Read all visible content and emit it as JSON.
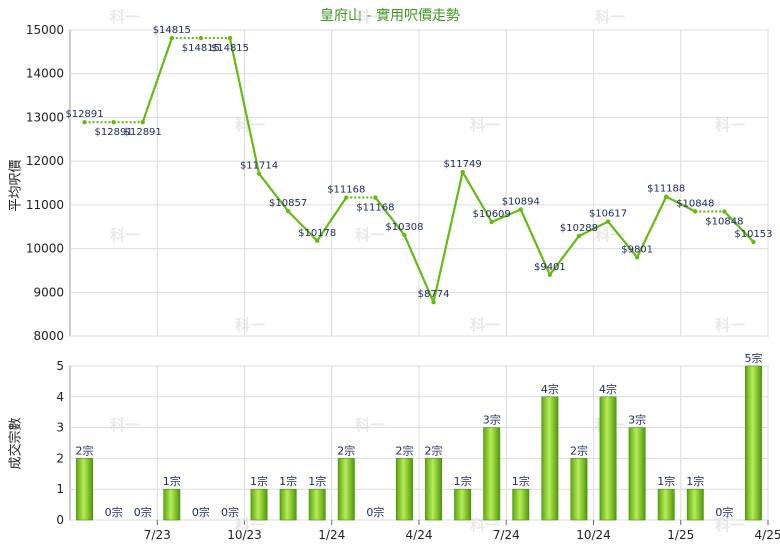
{
  "chart_data": [
    {
      "type": "line",
      "title": "皇府山 - 實用呎價走勢",
      "ylabel": "平均呎價",
      "ylim": [
        8000,
        15000
      ],
      "yticks": [
        8000,
        9000,
        10000,
        11000,
        12000,
        13000,
        14000,
        15000
      ],
      "points": [
        {
          "i": 0,
          "value": 12891,
          "label": "$12891"
        },
        {
          "i": 1,
          "value": 12891,
          "label": "$12891"
        },
        {
          "i": 2,
          "value": 12891,
          "label": "$12891"
        },
        {
          "i": 3,
          "value": 14815,
          "label": "$14815"
        },
        {
          "i": 4,
          "value": 14815,
          "label": "$14815"
        },
        {
          "i": 5,
          "value": 14815,
          "label": "$14815"
        },
        {
          "i": 6,
          "value": 11714,
          "label": "$11714"
        },
        {
          "i": 7,
          "value": 10857,
          "label": "$10857"
        },
        {
          "i": 8,
          "value": 10178,
          "label": "$10178"
        },
        {
          "i": 9,
          "value": 11168,
          "label": "$11168"
        },
        {
          "i": 10,
          "value": 11168,
          "label": "$11168"
        },
        {
          "i": 11,
          "value": 10308,
          "label": "$10308"
        },
        {
          "i": 12,
          "value": 8774,
          "label": "$8774"
        },
        {
          "i": 13,
          "value": 11749,
          "label": "$11749"
        },
        {
          "i": 14,
          "value": 10609,
          "label": "$10609"
        },
        {
          "i": 15,
          "value": 10894,
          "label": "$10894"
        },
        {
          "i": 16,
          "value": 9401,
          "label": "$9401"
        },
        {
          "i": 17,
          "value": 10288,
          "label": "$10288"
        },
        {
          "i": 18,
          "value": 10617,
          "label": "$10617"
        },
        {
          "i": 19,
          "value": 9801,
          "label": "$9801"
        },
        {
          "i": 20,
          "value": 11188,
          "label": "$11188"
        },
        {
          "i": 21,
          "value": 10848,
          "label": "$10848"
        },
        {
          "i": 22,
          "value": 10848,
          "label": "$10848"
        },
        {
          "i": 23,
          "value": 10153,
          "label": "$10153"
        }
      ],
      "carried_forward_after": [
        0,
        1,
        3,
        4,
        9,
        21
      ],
      "color": "#66bb10",
      "grid": true
    },
    {
      "type": "bar",
      "ylabel": "成交宗數",
      "ylim": [
        0,
        5
      ],
      "yticks": [
        0,
        1,
        2,
        3,
        4,
        5
      ],
      "values": [
        2,
        0,
        0,
        1,
        0,
        0,
        1,
        1,
        1,
        2,
        0,
        2,
        2,
        1,
        3,
        1,
        4,
        2,
        4,
        3,
        1,
        1,
        0,
        5
      ],
      "bar_labels": [
        "2宗",
        "0宗",
        "0宗",
        "1宗",
        "0宗",
        "0宗",
        "1宗",
        "1宗",
        "1宗",
        "2宗",
        "0宗",
        "2宗",
        "2宗",
        "1宗",
        "3宗",
        "1宗",
        "4宗",
        "2宗",
        "4宗",
        "3宗",
        "1宗",
        "1宗",
        "0宗",
        "5宗"
      ],
      "xtick_labels": [
        {
          "after": 2,
          "label": "7/23"
        },
        {
          "after": 5,
          "label": "10/23"
        },
        {
          "after": 8,
          "label": "1/24"
        },
        {
          "after": 11,
          "label": "4/24"
        },
        {
          "after": 14,
          "label": "7/24"
        },
        {
          "after": 17,
          "label": "10/24"
        },
        {
          "after": 20,
          "label": "1/25"
        },
        {
          "after": 23,
          "label": "4/25"
        }
      ],
      "color": "#66bb10",
      "grid": true
    }
  ],
  "watermark": "科一"
}
